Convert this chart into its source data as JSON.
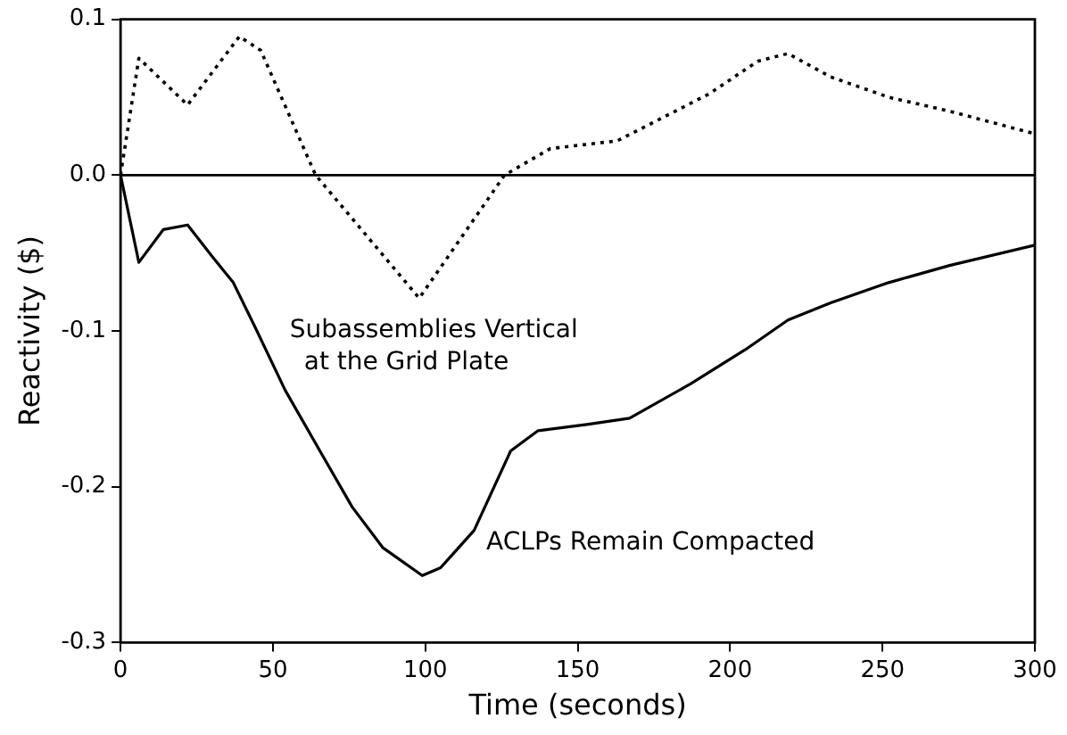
{
  "chart_data": {
    "type": "line",
    "xlabel": "Time (seconds)",
    "ylabel": "Reactivity ($)",
    "xlim": [
      0,
      300
    ],
    "xticks": [
      0,
      50,
      100,
      150,
      200,
      250,
      300
    ],
    "ylim": [
      -0.3,
      0.1
    ],
    "yticks": [
      {
        "value": -0.3,
        "label": "-0.3"
      },
      {
        "value": -0.2,
        "label": "-0.2"
      },
      {
        "value": -0.1,
        "label": "-0.1"
      },
      {
        "value": 0,
        "label": "0.0"
      },
      {
        "value": 0.1,
        "label": "0.1"
      }
    ],
    "grid": false,
    "legend": false,
    "marker": "none",
    "annotations": [
      "Subassemblies Vertical at the Grid Plate",
      "ACLPs Remain Compacted"
    ],
    "ref_lines": [
      {
        "axis": "y",
        "value": 0,
        "color": "#000000",
        "line_style": "solid"
      }
    ],
    "series": [
      {
        "color": "#000000",
        "line_style": "dotted",
        "x": [
          0,
          6,
          22,
          39,
          46,
          64,
          98,
          126,
          141,
          163,
          193,
          209,
          219,
          233,
          252,
          272,
          299
        ],
        "values": [
          0,
          0.075,
          0.045,
          0.089,
          0.08,
          0,
          -0.079,
          0,
          0.017,
          0.022,
          0.052,
          0.073,
          0.078,
          0.063,
          0.05,
          0.041,
          0.027
        ]
      },
      {
        "color": "#000000",
        "line_style": "solid",
        "x": [
          0,
          6,
          14,
          22,
          30,
          37,
          44,
          54,
          66,
          76,
          86,
          99,
          105,
          116,
          128,
          137,
          153,
          167,
          187,
          205,
          219,
          233,
          252,
          272,
          300
        ],
        "values": [
          0,
          -0.056,
          -0.035,
          -0.032,
          -0.052,
          -0.069,
          -0.097,
          -0.138,
          -0.179,
          -0.213,
          -0.239,
          -0.257,
          -0.252,
          -0.228,
          -0.177,
          -0.164,
          -0.16,
          -0.156,
          -0.134,
          -0.112,
          -0.093,
          -0.082,
          -0.069,
          -0.058,
          -0.045
        ]
      }
    ]
  }
}
